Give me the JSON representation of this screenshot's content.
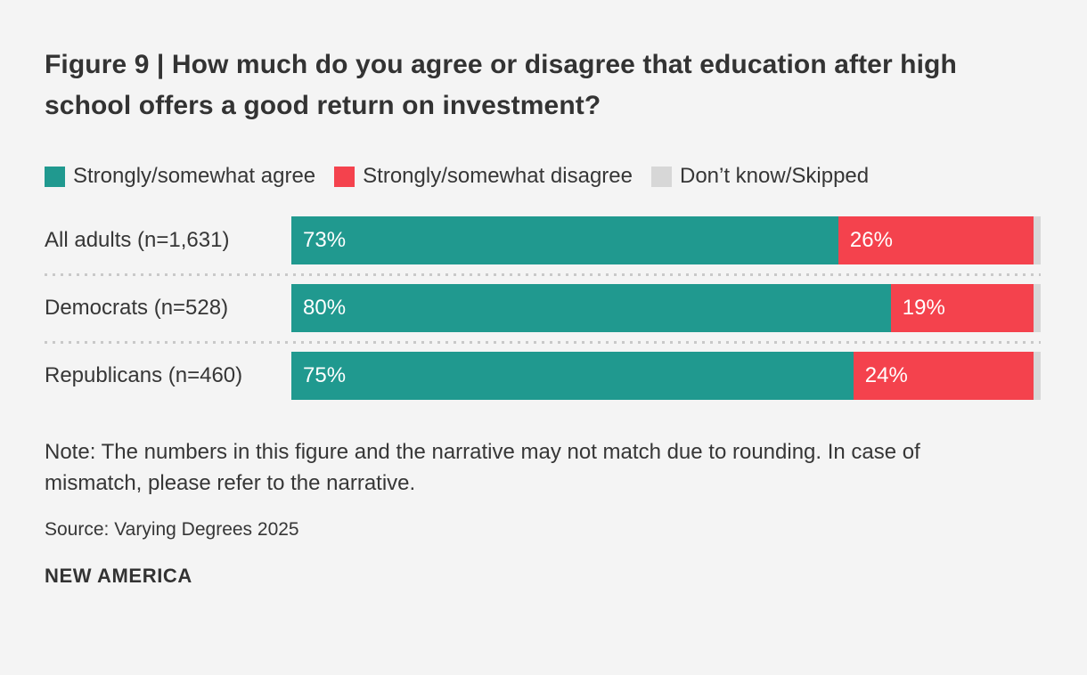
{
  "page": {
    "background": "#f4f4f4",
    "text_color": "#363636"
  },
  "chart_data": {
    "type": "bar",
    "orientation": "horizontal-stacked",
    "title": "Figure 9 | How much do you agree or disagree that education after high school offers a good return on investment?",
    "categories": [
      "All adults (n=1,631)",
      "Democrats (n=528)",
      "Republicans (n=460)"
    ],
    "series": [
      {
        "name": "Strongly/somewhat agree",
        "color": "#20998F",
        "values": [
          73,
          80,
          75
        ]
      },
      {
        "name": "Strongly/somewhat disagree",
        "color": "#F4424D",
        "values": [
          26,
          19,
          24
        ]
      },
      {
        "name": "Don’t know/Skipped",
        "color": "#D7D7D7",
        "values": [
          1,
          1,
          1
        ]
      }
    ],
    "bar_labels": [
      [
        "73%",
        "26%",
        ""
      ],
      [
        "80%",
        "19%",
        ""
      ],
      [
        "75%",
        "24%",
        ""
      ]
    ],
    "xlim": [
      0,
      100
    ],
    "grid": "off",
    "legend_position": "top",
    "note": "Note: The numbers in this figure and the narrative may not match due to rounding. In case of mismatch, please refer to the narrative.",
    "source": "Source: Varying Degrees 2025",
    "org": "NEW AMERICA"
  }
}
